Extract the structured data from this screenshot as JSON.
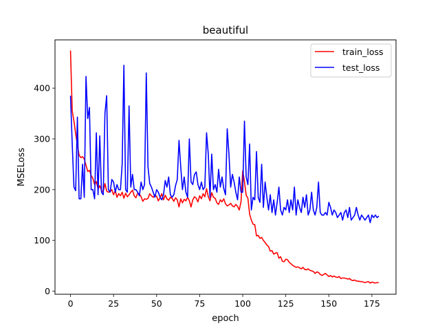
{
  "chart_data": {
    "type": "line",
    "title": "beautiful",
    "xlabel": "epoch",
    "ylabel": "MSELoss",
    "xlim": [
      -9,
      189
    ],
    "ylim": [
      -6,
      495
    ],
    "xticks": [
      0,
      25,
      50,
      75,
      100,
      125,
      150,
      175
    ],
    "yticks": [
      0,
      100,
      200,
      300,
      400
    ],
    "grid": false,
    "legend_position": "upper right",
    "series": [
      {
        "name": "train_loss",
        "color": "#ff0000",
        "x": [
          0,
          1,
          2,
          3,
          4,
          5,
          6,
          7,
          8,
          9,
          10,
          11,
          12,
          13,
          14,
          15,
          16,
          17,
          18,
          19,
          20,
          21,
          22,
          23,
          24,
          25,
          26,
          27,
          28,
          29,
          30,
          31,
          32,
          33,
          34,
          35,
          36,
          37,
          38,
          39,
          40,
          41,
          42,
          43,
          44,
          45,
          46,
          47,
          48,
          49,
          50,
          51,
          52,
          53,
          54,
          55,
          56,
          57,
          58,
          59,
          60,
          61,
          62,
          63,
          64,
          65,
          66,
          67,
          68,
          69,
          70,
          71,
          72,
          73,
          74,
          75,
          76,
          77,
          78,
          79,
          80,
          81,
          82,
          83,
          84,
          85,
          86,
          87,
          88,
          89,
          90,
          91,
          92,
          93,
          94,
          95,
          96,
          97,
          98,
          99,
          100,
          101,
          102,
          103,
          104,
          105,
          106,
          107,
          108,
          109,
          110,
          111,
          112,
          113,
          114,
          115,
          116,
          117,
          118,
          119,
          120,
          121,
          122,
          123,
          124,
          125,
          126,
          127,
          128,
          129,
          130,
          131,
          132,
          133,
          134,
          135,
          136,
          137,
          138,
          139,
          140,
          141,
          142,
          143,
          144,
          145,
          146,
          147,
          148,
          149,
          150,
          151,
          152,
          153,
          154,
          155,
          156,
          157,
          158,
          159,
          160,
          161,
          162,
          163,
          164,
          165,
          166,
          167,
          168,
          169,
          170,
          171,
          172,
          173,
          174,
          175,
          176,
          177,
          178,
          179
        ],
        "values": [
          474,
          355,
          335,
          310,
          288,
          268,
          263,
          265,
          260,
          248,
          236,
          238,
          228,
          222,
          210,
          216,
          201,
          208,
          198,
          196,
          212,
          197,
          195,
          196,
          200,
          190,
          198,
          185,
          192,
          188,
          195,
          183,
          193,
          186,
          190,
          195,
          199,
          188,
          184,
          193,
          191,
          186,
          177,
          182,
          181,
          183,
          192,
          188,
          185,
          189,
          187,
          178,
          184,
          192,
          180,
          189,
          182,
          179,
          185,
          183,
          177,
          184,
          180,
          166,
          182,
          174,
          181,
          178,
          185,
          178,
          166,
          180,
          186,
          183,
          176,
          188,
          182,
          192,
          186,
          202,
          186,
          178,
          194,
          185,
          183,
          174,
          171,
          180,
          176,
          182,
          172,
          168,
          170,
          173,
          168,
          166,
          171,
          167,
          160,
          176,
          237,
          216,
          189,
          183,
          152,
          140,
          132,
          131,
          109,
          110,
          104,
          106,
          100,
          96,
          91,
          88,
          79,
          80,
          73,
          75,
          76,
          65,
          68,
          59,
          58,
          63,
          62,
          57,
          54,
          51,
          49,
          47,
          48,
          46,
          44,
          47,
          43,
          42,
          44,
          41,
          40,
          39,
          35,
          38,
          37,
          33,
          31,
          33,
          35,
          32,
          29,
          31,
          28,
          30,
          28,
          27,
          29,
          25,
          26,
          26,
          25,
          24,
          25,
          22,
          21,
          22,
          20,
          20,
          19,
          19,
          18,
          17,
          18,
          19,
          16,
          18,
          17,
          16,
          17,
          17
        ]
      },
      {
        "name": "test_loss",
        "color": "#0000ff",
        "x": [
          0,
          1,
          2,
          3,
          4,
          5,
          6,
          7,
          8,
          9,
          10,
          11,
          12,
          13,
          14,
          15,
          16,
          17,
          18,
          19,
          20,
          21,
          22,
          23,
          24,
          25,
          26,
          27,
          28,
          29,
          30,
          31,
          32,
          33,
          34,
          35,
          36,
          37,
          38,
          39,
          40,
          41,
          42,
          43,
          44,
          45,
          46,
          47,
          48,
          49,
          50,
          51,
          52,
          53,
          54,
          55,
          56,
          57,
          58,
          59,
          60,
          61,
          62,
          63,
          64,
          65,
          66,
          67,
          68,
          69,
          70,
          71,
          72,
          73,
          74,
          75,
          76,
          77,
          78,
          79,
          80,
          81,
          82,
          83,
          84,
          85,
          86,
          87,
          88,
          89,
          90,
          91,
          92,
          93,
          94,
          95,
          96,
          97,
          98,
          99,
          100,
          101,
          102,
          103,
          104,
          105,
          106,
          107,
          108,
          109,
          110,
          111,
          112,
          113,
          114,
          115,
          116,
          117,
          118,
          119,
          120,
          121,
          122,
          123,
          124,
          125,
          126,
          127,
          128,
          129,
          130,
          131,
          132,
          133,
          134,
          135,
          136,
          137,
          138,
          139,
          140,
          141,
          142,
          143,
          144,
          145,
          146,
          147,
          148,
          149,
          150,
          151,
          152,
          153,
          154,
          155,
          156,
          157,
          158,
          159,
          160,
          161,
          162,
          163,
          164,
          165,
          166,
          167,
          168,
          169,
          170,
          171,
          172,
          173,
          174,
          175,
          176,
          177,
          178,
          179
        ],
        "values": [
          385,
          290,
          205,
          198,
          343,
          182,
          182,
          250,
          185,
          423,
          340,
          362,
          200,
          200,
          182,
          312,
          190,
          306,
          195,
          190,
          350,
          385,
          200,
          195,
          220,
          215,
          195,
          210,
          200,
          200,
          250,
          445,
          200,
          195,
          365,
          205,
          230,
          200,
          200,
          195,
          188,
          215,
          200,
          210,
          430,
          245,
          212,
          205,
          195,
          185,
          200,
          195,
          185,
          180,
          190,
          218,
          205,
          225,
          190,
          185,
          190,
          208,
          220,
          297,
          245,
          200,
          225,
          195,
          185,
          300,
          215,
          210,
          230,
          235,
          210,
          200,
          215,
          200,
          205,
          312,
          270,
          185,
          270,
          200,
          210,
          195,
          240,
          205,
          225,
          202,
          190,
          320,
          270,
          205,
          230,
          215,
          195,
          180,
          225,
          195,
          195,
          335,
          225,
          210,
          290,
          160,
          185,
          180,
          275,
          185,
          175,
          250,
          165,
          215,
          185,
          160,
          190,
          155,
          180,
          150,
          175,
          205,
          160,
          150,
          165,
          160,
          180,
          155,
          180,
          160,
          205,
          150,
          180,
          165,
          155,
          185,
          165,
          190,
          150,
          160,
          195,
          160,
          150,
          165,
          215,
          155,
          150,
          150,
          155,
          150,
          175,
          165,
          150,
          160,
          155,
          145,
          150,
          155,
          140,
          155,
          160,
          145,
          165,
          140,
          145,
          150,
          165,
          150,
          140,
          150,
          145,
          140,
          145,
          150,
          135,
          150,
          145,
          150,
          145,
          148
        ]
      }
    ]
  }
}
